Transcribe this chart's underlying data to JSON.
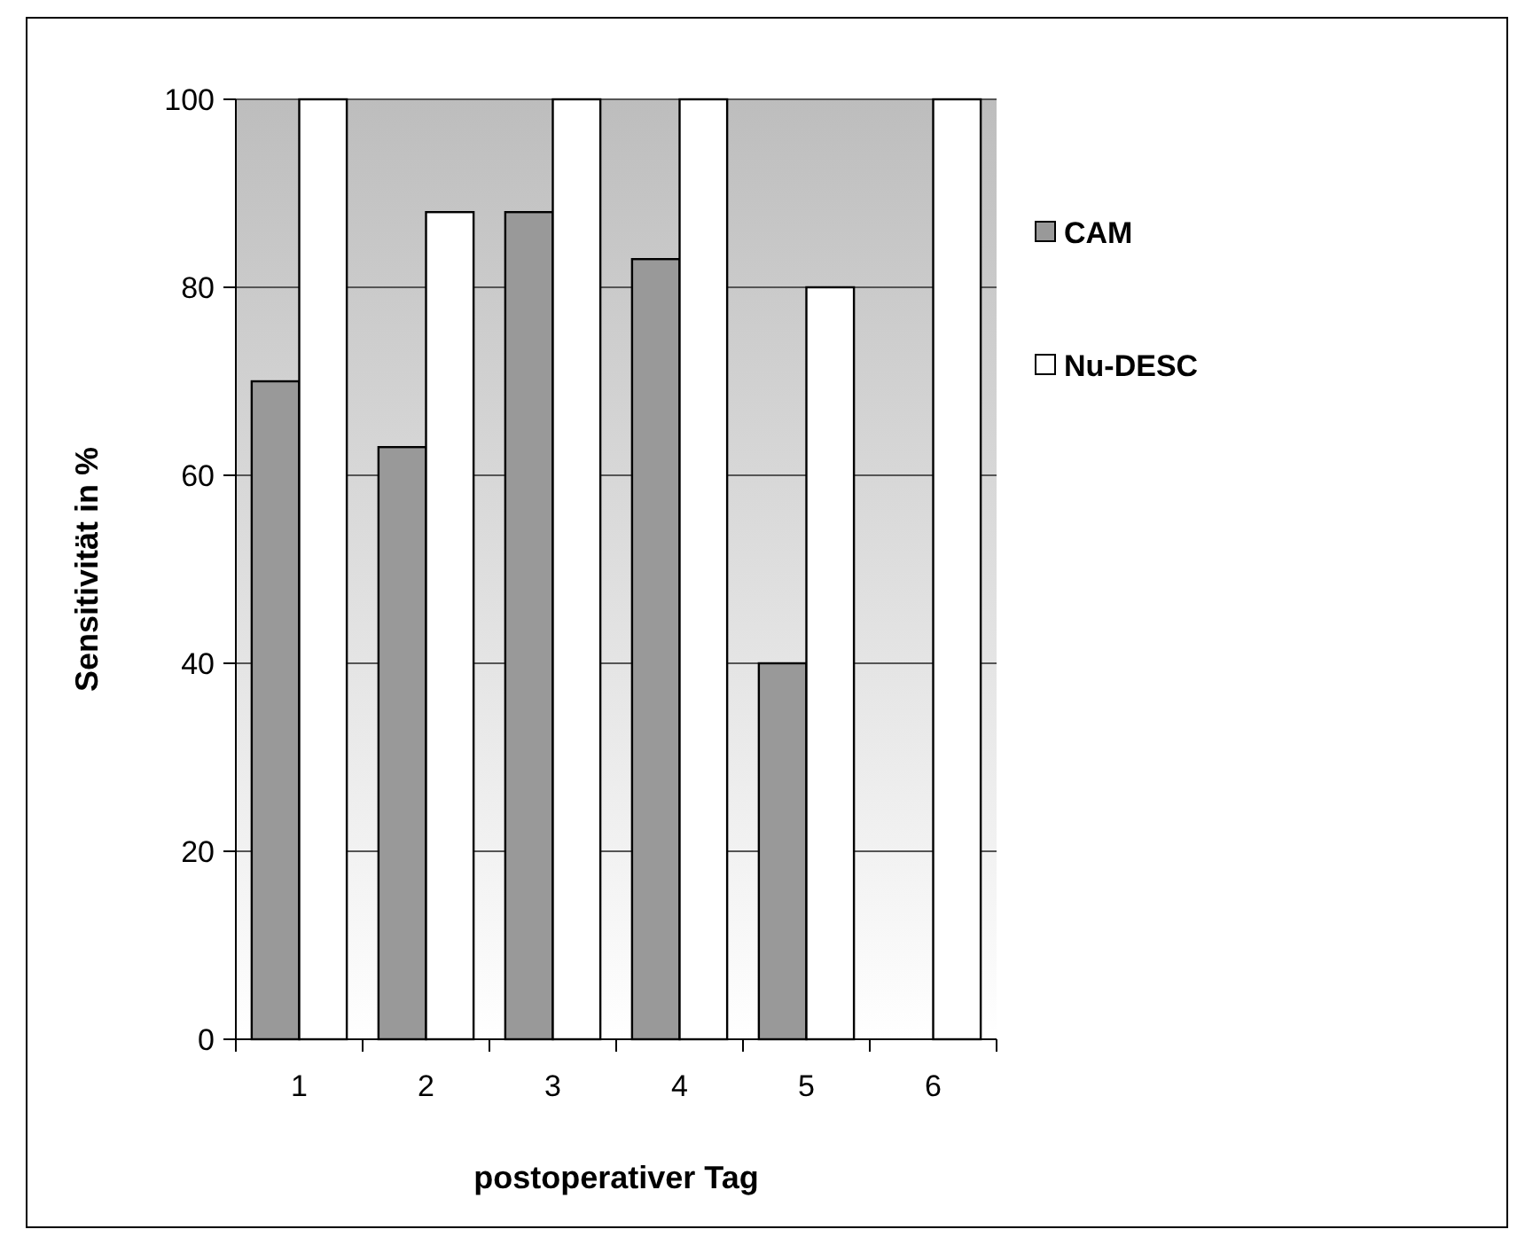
{
  "chart_data": {
    "type": "bar",
    "xlabel": "postoperativer Tag",
    "ylabel": "Sensitivität in %",
    "categories": [
      "1",
      "2",
      "3",
      "4",
      "5",
      "6"
    ],
    "series": [
      {
        "name": "CAM",
        "color": "#999999",
        "values": [
          70,
          63,
          88,
          83,
          40,
          null
        ]
      },
      {
        "name": "Nu-DESC",
        "color": "#ffffff",
        "values": [
          100,
          88,
          100,
          100,
          80,
          100
        ]
      }
    ],
    "ylim": [
      0,
      100
    ],
    "yticks": [
      0,
      20,
      40,
      60,
      80,
      100
    ],
    "grid": "y",
    "legend": "right"
  }
}
